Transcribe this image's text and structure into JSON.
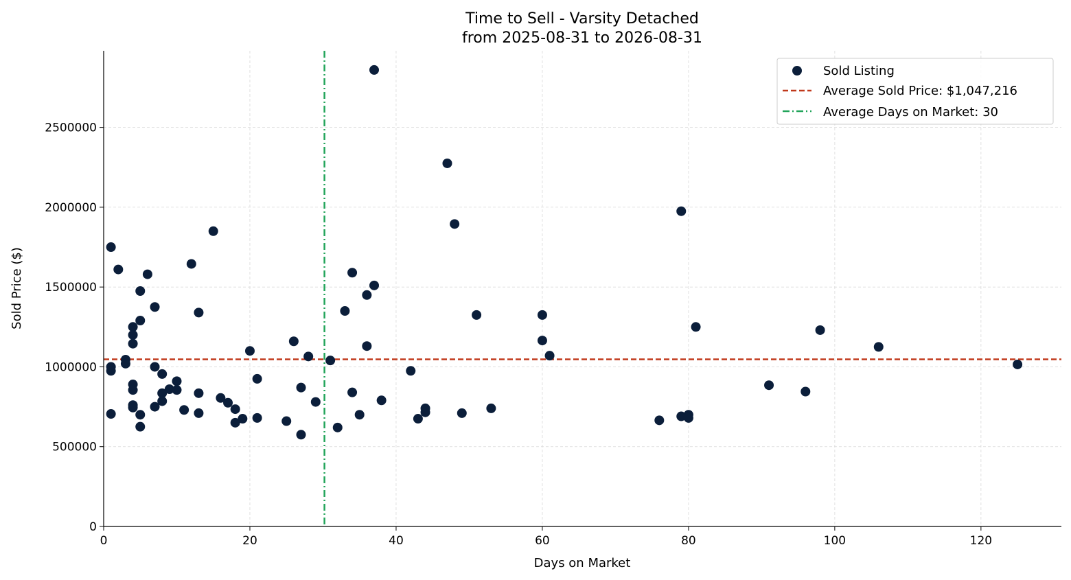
{
  "chart_data": {
    "type": "scatter",
    "title": "Time to Sell - Varsity Detached",
    "subtitle": "from 2025-08-31 to 2026-08-31",
    "xlabel": "Days on Market",
    "ylabel": "Sold Price ($)",
    "xlim": [
      0,
      131
    ],
    "ylim": [
      0,
      2980000
    ],
    "x_ticks": [
      0,
      20,
      40,
      60,
      80,
      100,
      120
    ],
    "y_ticks": [
      0,
      500000,
      1000000,
      1500000,
      2000000,
      2500000
    ],
    "grid": true,
    "legend_position": "top-right",
    "colors": {
      "points": "#0b1e3a",
      "avg_price_line": "#c0391b",
      "avg_days_line": "#22a45a"
    },
    "series": [
      {
        "name": "Sold Listing",
        "points": [
          [
            1,
            1750000
          ],
          [
            1,
            1000000
          ],
          [
            1,
            975000
          ],
          [
            1,
            705000
          ],
          [
            2,
            1610000
          ],
          [
            3,
            1045000
          ],
          [
            3,
            1020000
          ],
          [
            4,
            1250000
          ],
          [
            4,
            1200000
          ],
          [
            4,
            1145000
          ],
          [
            4,
            890000
          ],
          [
            4,
            855000
          ],
          [
            4,
            760000
          ],
          [
            4,
            745000
          ],
          [
            5,
            1475000
          ],
          [
            5,
            1290000
          ],
          [
            5,
            700000
          ],
          [
            5,
            625000
          ],
          [
            6,
            1580000
          ],
          [
            7,
            1375000
          ],
          [
            7,
            1000000
          ],
          [
            7,
            750000
          ],
          [
            8,
            955000
          ],
          [
            8,
            835000
          ],
          [
            8,
            785000
          ],
          [
            9,
            860000
          ],
          [
            10,
            910000
          ],
          [
            10,
            855000
          ],
          [
            11,
            730000
          ],
          [
            12,
            1645000
          ],
          [
            13,
            1340000
          ],
          [
            13,
            835000
          ],
          [
            13,
            710000
          ],
          [
            15,
            1850000
          ],
          [
            16,
            805000
          ],
          [
            17,
            775000
          ],
          [
            18,
            735000
          ],
          [
            18,
            650000
          ],
          [
            19,
            675000
          ],
          [
            20,
            1100000
          ],
          [
            21,
            925000
          ],
          [
            21,
            680000
          ],
          [
            25,
            660000
          ],
          [
            26,
            1160000
          ],
          [
            27,
            870000
          ],
          [
            27,
            575000
          ],
          [
            28,
            1065000
          ],
          [
            29,
            780000
          ],
          [
            31,
            1040000
          ],
          [
            32,
            620000
          ],
          [
            33,
            1350000
          ],
          [
            34,
            1590000
          ],
          [
            34,
            840000
          ],
          [
            35,
            700000
          ],
          [
            36,
            1450000
          ],
          [
            36,
            1130000
          ],
          [
            37,
            2860000
          ],
          [
            37,
            1510000
          ],
          [
            38,
            790000
          ],
          [
            42,
            975000
          ],
          [
            43,
            675000
          ],
          [
            44,
            740000
          ],
          [
            44,
            715000
          ],
          [
            47,
            2275000
          ],
          [
            48,
            1895000
          ],
          [
            49,
            710000
          ],
          [
            51,
            1325000
          ],
          [
            53,
            740000
          ],
          [
            60,
            1325000
          ],
          [
            60,
            1165000
          ],
          [
            61,
            1070000
          ],
          [
            76,
            665000
          ],
          [
            79,
            1975000
          ],
          [
            79,
            690000
          ],
          [
            80,
            700000
          ],
          [
            80,
            680000
          ],
          [
            81,
            1250000
          ],
          [
            91,
            885000
          ],
          [
            96,
            845000
          ],
          [
            98,
            1230000
          ],
          [
            106,
            1125000
          ],
          [
            125,
            1015000
          ]
        ]
      }
    ],
    "reference_lines": {
      "avg_price": {
        "label": "Average Sold Price: $1,047,216",
        "value": 1047216
      },
      "avg_days": {
        "label": "Average Days on Market: 30",
        "value": 30.2
      }
    }
  }
}
